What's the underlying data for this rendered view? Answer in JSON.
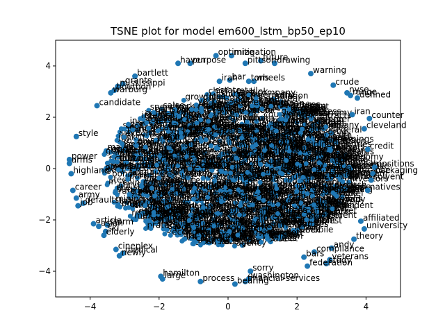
{
  "chart_data": {
    "type": "scatter",
    "title": "TSNE plot for model em600_lstm_bp50_ep10",
    "xlabel": "",
    "ylabel": "",
    "xlim": [
      -5.0,
      5.0
    ],
    "ylim": [
      -5.0,
      5.0
    ],
    "xticks": [
      -4,
      -2,
      0,
      2,
      4
    ],
    "yticks": [
      -4,
      -2,
      0,
      2,
      4
    ],
    "xtick_labels": [
      "−4",
      "−2",
      "0",
      "2",
      "4"
    ],
    "ytick_labels": [
      "−4",
      "−2",
      "0",
      "2",
      "4"
    ],
    "grid": false,
    "point_color": "#1f77b4",
    "points": [
      {
        "x": -1.45,
        "y": 4.1,
        "label": "haven"
      },
      {
        "x": -1.1,
        "y": 4.1,
        "label": "purpose"
      },
      {
        "x": -0.35,
        "y": 4.4,
        "label": "optimize"
      },
      {
        "x": 0.1,
        "y": 4.4,
        "label": "mitigation"
      },
      {
        "x": 0.95,
        "y": 4.2,
        "label": "future"
      },
      {
        "x": 0.5,
        "y": 4.1,
        "label": "pittson"
      },
      {
        "x": 1.35,
        "y": 4.1,
        "label": "drawing"
      },
      {
        "x": 2.4,
        "y": 3.7,
        "label": "warning"
      },
      {
        "x": -2.7,
        "y": 3.6,
        "label": "bartlett"
      },
      {
        "x": -3.05,
        "y": 3.3,
        "label": "grants"
      },
      {
        "x": -3.2,
        "y": 3.2,
        "label": "mississippi"
      },
      {
        "x": -3.3,
        "y": 3.05,
        "label": "bourbon"
      },
      {
        "x": -3.4,
        "y": 2.95,
        "label": "warburg"
      },
      {
        "x": 3.05,
        "y": 3.25,
        "label": "crude"
      },
      {
        "x": 3.45,
        "y": 2.95,
        "label": "nyse"
      },
      {
        "x": 3.55,
        "y": 2.85,
        "label": "range"
      },
      {
        "x": 3.75,
        "y": 2.75,
        "label": "defined"
      },
      {
        "x": -0.25,
        "y": 3.4,
        "label": "iran"
      },
      {
        "x": 0.05,
        "y": 3.45,
        "label": "bar"
      },
      {
        "x": 0.6,
        "y": 3.4,
        "label": "tons"
      },
      {
        "x": 0.75,
        "y": 3.4,
        "label": "wheels"
      },
      {
        "x": -3.8,
        "y": 2.45,
        "label": "candidate"
      },
      {
        "x": 3.6,
        "y": 2.1,
        "label": "iran"
      },
      {
        "x": 4.1,
        "y": 1.95,
        "label": "counter"
      },
      {
        "x": 3.95,
        "y": 1.55,
        "label": "cleveland"
      },
      {
        "x": -4.4,
        "y": 1.25,
        "label": "style"
      },
      {
        "x": 4.05,
        "y": 0.75,
        "label": "credit"
      },
      {
        "x": -4.6,
        "y": 0.35,
        "label": "power"
      },
      {
        "x": -4.6,
        "y": 0.2,
        "label": "arms"
      },
      {
        "x": -4.55,
        "y": -0.2,
        "label": "highland"
      },
      {
        "x": 4.25,
        "y": 0.05,
        "label": "positions"
      },
      {
        "x": 4.2,
        "y": -0.2,
        "label": "packaging"
      },
      {
        "x": 4.15,
        "y": -0.45,
        "label": "solvent"
      },
      {
        "x": 4.05,
        "y": -0.85,
        "label": "natives"
      },
      {
        "x": -4.5,
        "y": -0.85,
        "label": "career"
      },
      {
        "x": -4.4,
        "y": -1.15,
        "label": "army"
      },
      {
        "x": -4.2,
        "y": -1.35,
        "label": "defaults"
      },
      {
        "x": -4.35,
        "y": -1.45,
        "label": "job"
      },
      {
        "x": 3.85,
        "y": -2.05,
        "label": "affiliated"
      },
      {
        "x": 3.95,
        "y": -2.35,
        "label": "university"
      },
      {
        "x": 3.65,
        "y": -2.75,
        "label": "theory"
      },
      {
        "x": -3.9,
        "y": -2.15,
        "label": "article"
      },
      {
        "x": -3.75,
        "y": -2.25,
        "label": "asian"
      },
      {
        "x": -3.5,
        "y": -2.2,
        "label": "storm"
      },
      {
        "x": -3.55,
        "y": -2.45,
        "label": "ski"
      },
      {
        "x": -3.6,
        "y": -2.6,
        "label": "elderly"
      },
      {
        "x": -3.25,
        "y": -3.15,
        "label": "cineplex"
      },
      {
        "x": -3.05,
        "y": -3.3,
        "label": "medical"
      },
      {
        "x": -3.15,
        "y": -3.4,
        "label": "newly"
      },
      {
        "x": 3.0,
        "y": -3.1,
        "label": "andy"
      },
      {
        "x": 2.5,
        "y": -3.25,
        "label": "compliance"
      },
      {
        "x": 2.2,
        "y": -3.45,
        "label": "bars"
      },
      {
        "x": 2.95,
        "y": -3.55,
        "label": "veterans"
      },
      {
        "x": 2.85,
        "y": -3.7,
        "label": "study"
      },
      {
        "x": 2.3,
        "y": -3.8,
        "label": "federation"
      },
      {
        "x": 0.65,
        "y": -4.0,
        "label": "sorry"
      },
      {
        "x": -1.95,
        "y": -4.2,
        "label": "hamilton"
      },
      {
        "x": -1.9,
        "y": -4.3,
        "label": "large"
      },
      {
        "x": -0.8,
        "y": -4.4,
        "label": "process"
      },
      {
        "x": 0.6,
        "y": -4.3,
        "label": "washington"
      },
      {
        "x": 0.5,
        "y": -4.4,
        "label": "financial-services"
      },
      {
        "x": 0.2,
        "y": -4.5,
        "label": "bearing"
      }
    ],
    "cloud_labels": [
      "the",
      "and",
      "of",
      "to",
      "in",
      "for",
      "said",
      "market",
      "share",
      "prices",
      "company",
      "stock",
      "trading",
      "year",
      "rate",
      "sales",
      "bank",
      "profit",
      "quarter",
      "billion",
      "million",
      "offer",
      "deal",
      "shares",
      "analysts",
      "index",
      "oil",
      "price",
      "bonds",
      "dollar",
      "yen",
      "growth",
      "exports",
      "tax",
      "loss",
      "net",
      "income",
      "fund",
      "plan",
      "board",
      "debt",
      "bid",
      "firm",
      "group",
      "unit",
      "earnings",
      "revenue",
      "chief",
      "officer",
      "president",
      "government",
      "federal",
      "court",
      "house",
      "state",
      "new",
      "york",
      "japan",
      "west",
      "germany",
      "trade",
      "economy",
      "inflation",
      "interest",
      "rates",
      "credit",
      "securities",
      "investors",
      "buyout",
      "merger",
      "acquisition",
      "estate",
      "real",
      "insurance",
      "capital",
      "equity",
      "junk",
      "yield",
      "treasury",
      "futures",
      "options",
      "contract",
      "contracts",
      "program",
      "computer",
      "software",
      "airline",
      "automobile",
      "cars",
      "ford",
      "chrysler",
      "steel",
      "mining",
      "gold",
      "coffee",
      "sugar",
      "wheat",
      "corn",
      "drug",
      "health",
      "law",
      "legal",
      "judge",
      "agency",
      "commission",
      "senate",
      "congress",
      "bush",
      "reagan",
      "policy",
      "budget",
      "deficit",
      "spending",
      "consumer",
      "retail",
      "store",
      "stores",
      "china",
      "soviet",
      "europe",
      "london",
      "tokyo",
      "paris",
      "canada",
      "mexico",
      "brazil"
    ]
  }
}
